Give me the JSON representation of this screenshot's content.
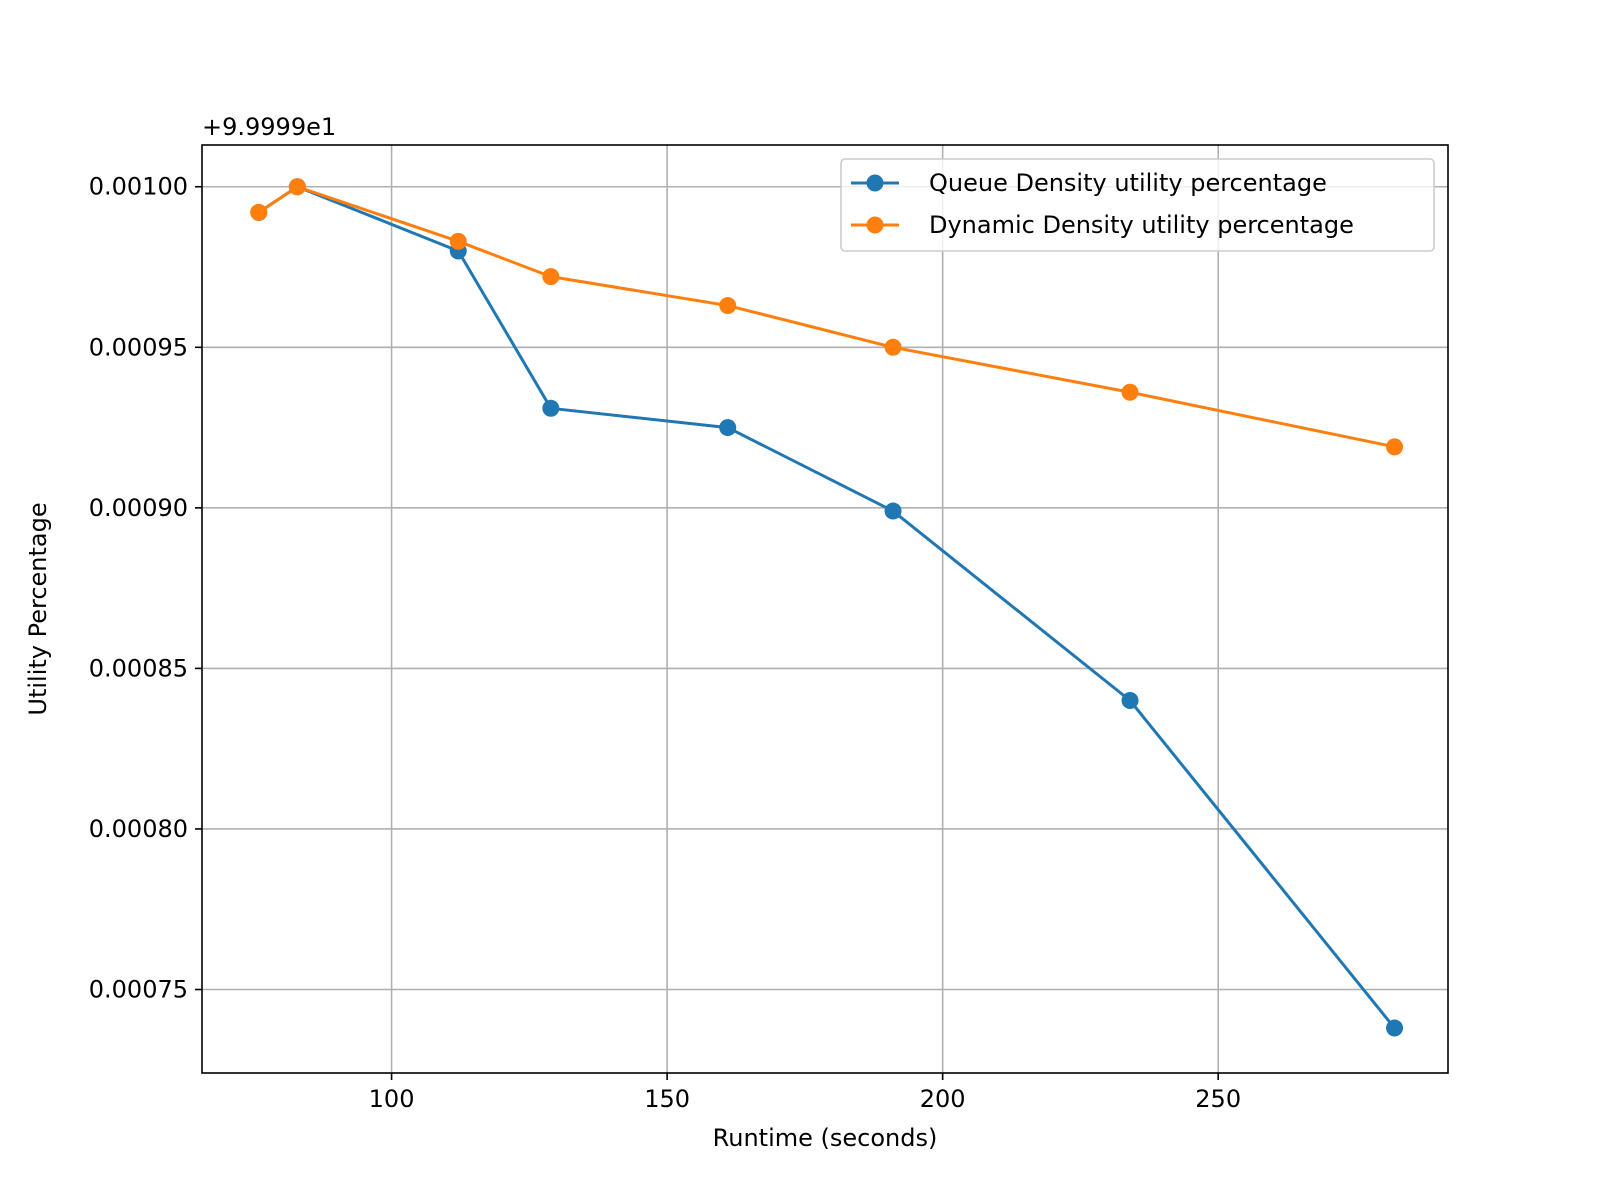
{
  "chart_data": {
    "type": "line",
    "title": "",
    "xlabel": "Runtime (seconds)",
    "ylabel": "Utility Percentage",
    "offset_text": "+9.9999e1",
    "xlim": [
      65.6,
      291.7
    ],
    "ylim": [
      0.000724,
      0.001013
    ],
    "xticks": [
      100,
      150,
      200,
      250
    ],
    "xtick_labels": [
      "100",
      "150",
      "200",
      "250"
    ],
    "yticks": [
      0.00075,
      0.0008,
      0.00085,
      0.0009,
      0.00095,
      0.001
    ],
    "ytick_labels": [
      "0.00075",
      "0.00080",
      "0.00085",
      "0.00090",
      "0.00095",
      "0.00100"
    ],
    "grid": true,
    "legend_position": "top-right",
    "series": [
      {
        "name": "Queue Density utility percentage",
        "color": "#1f77b4",
        "marker": "circle",
        "x": [
          75.9,
          82.9,
          112.1,
          128.9,
          161.0,
          191.0,
          234.0,
          282.0
        ],
        "y": [
          0.000992,
          0.001,
          0.00098,
          0.000931,
          0.000925,
          0.000899,
          0.00084,
          0.000738
        ]
      },
      {
        "name": "Dynamic Density utility percentage",
        "color": "#ff7f0e",
        "marker": "circle",
        "x": [
          75.9,
          82.9,
          112.1,
          128.9,
          161.0,
          191.0,
          234.0,
          282.0
        ],
        "y": [
          0.000992,
          0.001,
          0.000983,
          0.000972,
          0.000963,
          0.00095,
          0.000936,
          0.000919
        ]
      }
    ]
  }
}
